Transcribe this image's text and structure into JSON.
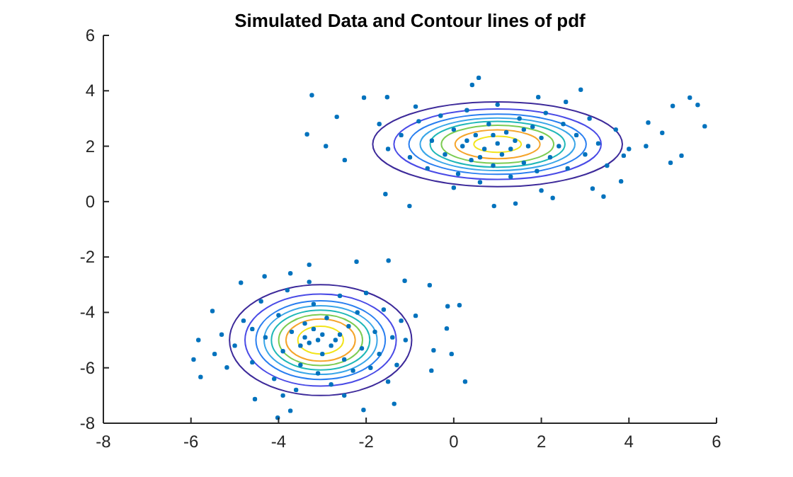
{
  "chart_data": {
    "type": "scatter",
    "title": "Simulated Data and Contour lines of pdf",
    "xlim": [
      -8,
      6
    ],
    "ylim": [
      -8,
      6
    ],
    "xticks": [
      -8,
      -6,
      -4,
      -2,
      0,
      2,
      4,
      6
    ],
    "yticks": [
      -8,
      -6,
      -4,
      -2,
      0,
      2,
      4,
      6
    ],
    "grid": false,
    "series": [
      {
        "marker": "circle",
        "color": "#0072bd",
        "x": [
          -3.24,
          -3.35,
          -2.92,
          -2.67,
          -2.49,
          -2.05,
          -1.56,
          -1.01,
          0.57,
          0.92,
          1.41,
          2.26,
          3.42,
          4.39,
          5.0,
          5.39,
          5.57,
          5.73,
          5.2,
          4.95,
          4.76,
          4.44,
          3.88,
          3.82,
          3.17,
          2.9,
          2.56,
          1.93,
          0.42,
          -0.87,
          -1.52,
          -1.2,
          -1.0,
          -0.8,
          -0.6,
          -0.5,
          -0.3,
          -0.2,
          0.0,
          0.1,
          0.2,
          0.3,
          0.4,
          0.5,
          0.6,
          0.7,
          0.8,
          0.9,
          1.0,
          1.0,
          1.1,
          1.2,
          1.3,
          1.4,
          1.5,
          1.6,
          1.7,
          1.8,
          1.9,
          2.0,
          2.1,
          2.2,
          2.4,
          2.5,
          2.6,
          2.8,
          3.0,
          3.1,
          3.3,
          3.5,
          3.7,
          0.3,
          0.6,
          1.3,
          0.9,
          1.6,
          -1.5,
          -1.7,
          4.0,
          0.0,
          2.0
        ],
        "values": [
          3.84,
          2.43,
          2.0,
          3.06,
          1.5,
          3.75,
          0.27,
          -0.16,
          4.47,
          -0.16,
          -0.07,
          0.13,
          0.18,
          2.0,
          3.45,
          3.75,
          3.49,
          2.72,
          1.66,
          1.4,
          2.48,
          2.85,
          1.66,
          0.73,
          0.47,
          4.04,
          3.6,
          3.77,
          4.21,
          3.43,
          3.77,
          2.4,
          1.6,
          2.9,
          1.2,
          2.2,
          3.1,
          1.7,
          2.6,
          1.0,
          2.0,
          3.3,
          1.5,
          2.4,
          0.7,
          1.9,
          2.8,
          1.3,
          2.1,
          3.5,
          1.7,
          2.5,
          0.9,
          2.2,
          3.0,
          1.4,
          2.0,
          2.7,
          1.1,
          2.3,
          3.2,
          1.6,
          2.0,
          2.8,
          1.2,
          2.4,
          1.7,
          3.0,
          2.1,
          1.3,
          2.6,
          2.2,
          1.6,
          1.9,
          2.4,
          2.6,
          1.9,
          2.8,
          1.9,
          0.5,
          0.4
        ]
      },
      {
        "marker": "circle",
        "color": "#0072bd",
        "x": [
          -5.94,
          -5.78,
          -5.83,
          -5.51,
          -5.46,
          -4.86,
          -4.32,
          -3.73,
          -3.3,
          -2.22,
          -1.49,
          -1.12,
          -0.55,
          -0.14,
          0.13,
          -0.16,
          -0.05,
          0.26,
          -0.46,
          -0.51,
          -0.87,
          -1.36,
          -2.06,
          -3.73,
          -4.02,
          -4.54,
          -5.18,
          -5.0,
          -4.8,
          -4.6,
          -4.4,
          -4.3,
          -4.1,
          -4.0,
          -3.9,
          -3.8,
          -3.7,
          -3.6,
          -3.5,
          -3.4,
          -3.3,
          -3.2,
          -3.1,
          -3.0,
          -3.0,
          -2.9,
          -2.8,
          -2.7,
          -2.6,
          -2.5,
          -2.4,
          -2.3,
          -2.2,
          -2.1,
          -2.0,
          -1.9,
          -1.8,
          -1.7,
          -1.6,
          -1.5,
          -1.4,
          -1.3,
          -1.2,
          -3.5,
          -3.2,
          -2.8,
          -3.1,
          -2.6,
          -3.4,
          -4.6,
          -3.9,
          -2.5,
          -3.3,
          -1.1,
          -5.3
        ],
        "values": [
          -5.7,
          -6.33,
          -5.0,
          -3.95,
          -5.5,
          -2.93,
          -2.7,
          -2.59,
          -2.28,
          -2.17,
          -2.13,
          -2.86,
          -3.02,
          -3.78,
          -3.74,
          -4.58,
          -5.5,
          -6.5,
          -5.37,
          -6.1,
          -4.12,
          -7.3,
          -7.52,
          -7.55,
          -7.8,
          -7.13,
          -5.99,
          -5.2,
          -4.3,
          -5.8,
          -3.6,
          -4.9,
          -6.4,
          -4.1,
          -5.4,
          -3.2,
          -4.7,
          -6.8,
          -5.9,
          -4.4,
          -5.1,
          -3.7,
          -6.2,
          -4.8,
          -5.5,
          -4.2,
          -6.6,
          -5.0,
          -3.4,
          -5.7,
          -4.5,
          -6.1,
          -4.0,
          -5.3,
          -3.3,
          -6.0,
          -4.7,
          -5.5,
          -3.9,
          -6.5,
          -4.9,
          -5.9,
          -4.3,
          -5.2,
          -4.6,
          -5.2,
          -5.0,
          -4.8,
          -4.9,
          -4.6,
          -7.0,
          -7.0,
          -2.9,
          -5.0,
          -4.8
        ]
      }
    ]
  }
}
